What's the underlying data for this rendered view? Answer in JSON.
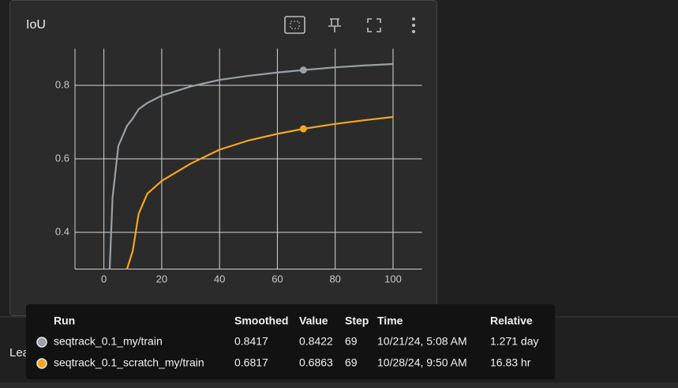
{
  "card": {
    "title": "IoU"
  },
  "chart_data": {
    "type": "line",
    "x": [
      2,
      3,
      5,
      8,
      10,
      12,
      15,
      20,
      30,
      40,
      50,
      60,
      69,
      80,
      90,
      100
    ],
    "series": [
      {
        "name": "seqtrack_0.1_my/train",
        "color": "#9aa0a8",
        "values": [
          0.3,
          0.495,
          0.635,
          0.69,
          0.71,
          0.735,
          0.752,
          0.772,
          0.797,
          0.815,
          0.826,
          0.835,
          0.8417,
          0.849,
          0.854,
          0.858
        ]
      },
      {
        "name": "seqtrack_0.1_scratch_my/train",
        "color": "#f5a623",
        "values": [
          null,
          null,
          null,
          0.3,
          0.35,
          0.45,
          0.505,
          0.54,
          0.587,
          0.625,
          0.65,
          0.668,
          0.6817,
          0.695,
          0.705,
          0.714
        ]
      }
    ],
    "xlim": [
      -10,
      110
    ],
    "ylim": [
      0.3,
      0.9
    ],
    "xticks": [
      0,
      20,
      40,
      60,
      80,
      100
    ],
    "yticks": [
      0.4,
      0.6,
      0.8
    ],
    "grid": true
  },
  "tooltip": {
    "columns": [
      "Run",
      "Smoothed",
      "Value",
      "Step",
      "Time",
      "Relative"
    ],
    "rows": [
      [
        "seqtrack_0.1_my/train",
        0.8417,
        0.8422,
        69,
        "10/21/24, 5:08 AM",
        "1.271 day"
      ],
      [
        "seqtrack_0.1_scratch_my/train",
        0.6817,
        0.6863,
        69,
        "10/28/24, 9:50 AM",
        "16.83 hr"
      ]
    ]
  },
  "next_card": {
    "title": "LearningRate"
  }
}
